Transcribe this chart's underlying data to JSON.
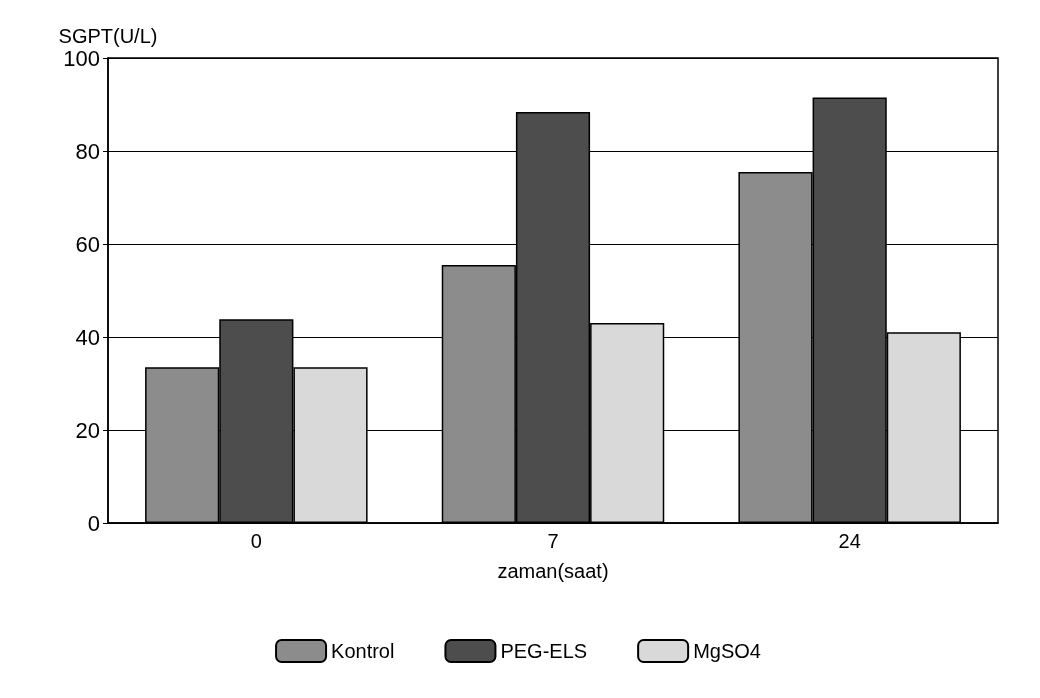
{
  "chart_data": {
    "type": "bar",
    "ylabel": "SGPT(U/L)",
    "xlabel": "zaman(saat)",
    "categories": [
      "0",
      "7",
      "24"
    ],
    "series": [
      {
        "name": "Kontrol",
        "color": "#8c8c8c",
        "values": [
          33.5,
          55.5,
          75.5
        ]
      },
      {
        "name": "PEG-ELS",
        "color": "#4d4d4d",
        "values": [
          43.8,
          88.4,
          91.5
        ]
      },
      {
        "name": "MgSO4",
        "color": "#d9d9d9",
        "values": [
          33.5,
          43,
          41
        ]
      }
    ],
    "ylim": [
      0,
      100
    ],
    "yticks": [
      0,
      20,
      40,
      60,
      80,
      100
    ],
    "grid": "y",
    "legend": "bottom"
  }
}
